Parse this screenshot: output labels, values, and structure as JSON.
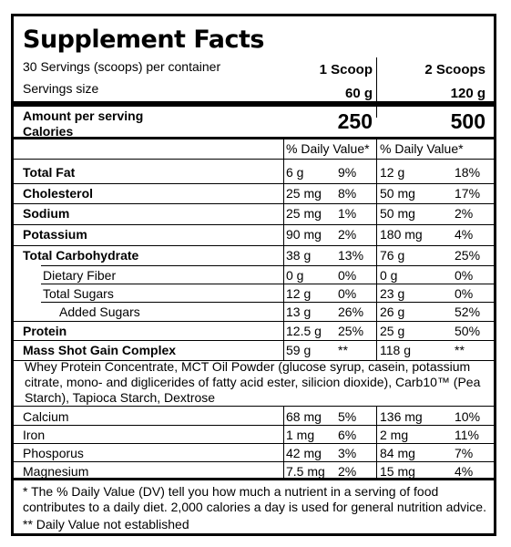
{
  "title": "Supplement Facts",
  "servings_per_container": "30 Servings (scoops) per container",
  "servings_size_label": "Servings size",
  "col1_header": "1 Scoop",
  "col2_header": "2 Scoops",
  "col1_size": "60 g",
  "col2_size": "120 g",
  "amount_per_serving": "Amount per serving",
  "calories_label": "Calories",
  "calories_1": "250",
  "calories_2": "500",
  "dv_header_1": "% Daily Value*",
  "dv_header_2": "% Daily Value*",
  "nutrients": [
    {
      "name": "Total Fat",
      "a1": "6 g",
      "d1": "9%",
      "a2": "12 g",
      "d2": "18%"
    },
    {
      "name": "Cholesterol",
      "a1": "25 mg",
      "d1": "8%",
      "a2": "50 mg",
      "d2": "17%"
    },
    {
      "name": "Sodium",
      "a1": "25 mg",
      "d1": "1%",
      "a2": "50 mg",
      "d2": "2%"
    },
    {
      "name": "Potassium",
      "a1": "90 mg",
      "d1": "2%",
      "a2": "180 mg",
      "d2": "4%"
    },
    {
      "name": "Total Carbohydrate",
      "a1": "38 g",
      "d1": "13%",
      "a2": "76 g",
      "d2": "25%"
    },
    {
      "name": "Dietary Fiber",
      "a1": "0 g",
      "d1": "0%",
      "a2": "0 g",
      "d2": "0%"
    },
    {
      "name": "Total Sugars",
      "a1": "12 g",
      "d1": "0%",
      "a2": "23 g",
      "d2": "0%"
    },
    {
      "name": "Added Sugars",
      "a1": "13 g",
      "d1": "26%",
      "a2": "26 g",
      "d2": "52%"
    },
    {
      "name": "Protein",
      "a1": "12.5 g",
      "d1": "25%",
      "a2": "25 g",
      "d2": "50%"
    },
    {
      "name": "Mass Shot Gain Complex",
      "a1": "59 g",
      "d1": "**",
      "a2": "118 g",
      "d2": "**"
    }
  ],
  "ingredients": "Whey Protein Concentrate, MCT Oil Powder (glucose syrup, casein, potassium citrate, mono- and diglicerides of fatty acid ester, silicion dioxide), Carb10™ (Pea Starch), Tapioca Starch, Dextrose",
  "minerals": [
    {
      "name": "Calcium",
      "a1": "68 mg",
      "d1": "5%",
      "a2": "136 mg",
      "d2": "10%"
    },
    {
      "name": "Iron",
      "a1": "1 mg",
      "d1": "6%",
      "a2": "2 mg",
      "d2": "11%"
    },
    {
      "name": "Phosporus",
      "a1": "42 mg",
      "d1": "3%",
      "a2": "84 mg",
      "d2": "7%"
    },
    {
      "name": "Magnesium",
      "a1": "7.5 mg",
      "d1": "2%",
      "a2": "15 mg",
      "d2": "4%"
    }
  ],
  "footnote_dv": "* The % Daily Value (DV) tell you how much a nutrient in a serving of food contributes to a daily diet. 2,000 calories a day is used for general nutrition advice.",
  "footnote_na": "** Daily Value not established"
}
